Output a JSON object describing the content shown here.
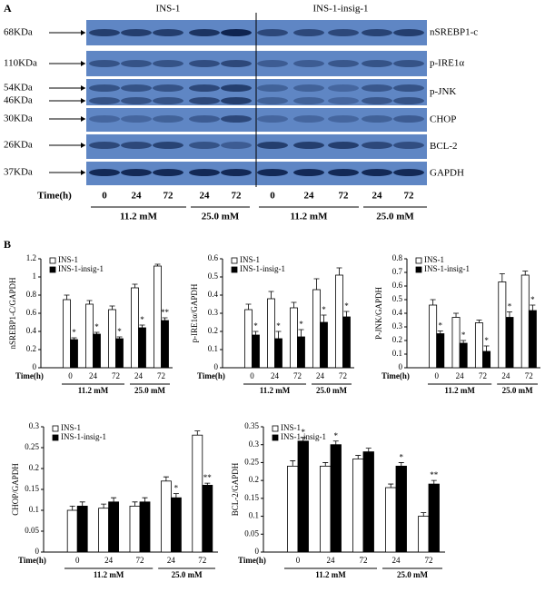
{
  "panel_a": {
    "label": "A",
    "groups": [
      "INS-1",
      "INS-1-insig-1"
    ],
    "markers": [
      "68KDa",
      "110KDa",
      "54KDa",
      "46KDa",
      "30KDa",
      "26KDa",
      "37KDa"
    ],
    "proteins": [
      "nSREBP1-c",
      "p-IRE1α",
      "p-JNK",
      "CHOP",
      "BCL-2",
      "GAPDH"
    ],
    "time_label": "Time(h)",
    "times": [
      "0",
      "24",
      "72",
      "24",
      "72",
      "0",
      "24",
      "72",
      "24",
      "72"
    ],
    "concentrations": [
      "11.2 mM",
      "25.0 mM",
      "11.2 mM",
      "25.0 mM"
    ]
  },
  "panel_b": {
    "label": "B"
  },
  "chart_data": [
    {
      "type": "bar",
      "ylabel": "nSREBP1-C/GAPDH",
      "xlabel": "Time(h)",
      "categories": [
        "0",
        "24",
        "72",
        "24",
        "72"
      ],
      "groups": [
        "11.2 mM",
        "25.0 mM"
      ],
      "ylim": [
        0,
        1.2
      ],
      "yticks": [
        0,
        0.2,
        0.4,
        0.6,
        0.8,
        1,
        1.2
      ],
      "series": [
        {
          "name": "INS-1",
          "color": "#ffffff",
          "values": [
            0.75,
            0.7,
            0.64,
            0.88,
            1.12
          ],
          "errors": [
            0.05,
            0.04,
            0.04,
            0.04,
            0.02
          ],
          "annotations": [
            null,
            null,
            null,
            null,
            null
          ]
        },
        {
          "name": "INS-1-insig-1",
          "color": "#000000",
          "values": [
            0.31,
            0.37,
            0.32,
            0.44,
            0.52
          ],
          "errors": [
            0.02,
            0.02,
            0.02,
            0.03,
            0.03
          ],
          "annotations": [
            "*",
            "*",
            "*",
            "*",
            "**"
          ]
        }
      ]
    },
    {
      "type": "bar",
      "ylabel": "p-IRE1α/GAPDH",
      "xlabel": "Time(h)",
      "categories": [
        "0",
        "24",
        "72",
        "24",
        "72"
      ],
      "groups": [
        "11.2 mM",
        "25.0 mM"
      ],
      "ylim": [
        0,
        0.6
      ],
      "yticks": [
        0,
        0.1,
        0.2,
        0.3,
        0.4,
        0.5,
        0.6
      ],
      "series": [
        {
          "name": "INS-1",
          "color": "#ffffff",
          "values": [
            0.32,
            0.38,
            0.33,
            0.43,
            0.51
          ],
          "errors": [
            0.03,
            0.04,
            0.03,
            0.06,
            0.04
          ],
          "annotations": [
            null,
            null,
            null,
            null,
            null
          ]
        },
        {
          "name": "INS-1-insig-1",
          "color": "#000000",
          "values": [
            0.18,
            0.16,
            0.17,
            0.25,
            0.28
          ],
          "errors": [
            0.02,
            0.04,
            0.04,
            0.04,
            0.03
          ],
          "annotations": [
            "*",
            "*",
            "*",
            "*",
            "*"
          ]
        }
      ]
    },
    {
      "type": "bar",
      "ylabel": "P-JNK/GAPDH",
      "xlabel": "Time(h)",
      "categories": [
        "0",
        "24",
        "72",
        "24",
        "72"
      ],
      "groups": [
        "11.2 mM",
        "25.0 mM"
      ],
      "ylim": [
        0,
        0.8
      ],
      "yticks": [
        0,
        0.1,
        0.2,
        0.3,
        0.4,
        0.5,
        0.6,
        0.7,
        0.8
      ],
      "series": [
        {
          "name": "INS-1",
          "color": "#ffffff",
          "values": [
            0.46,
            0.37,
            0.33,
            0.63,
            0.68
          ],
          "errors": [
            0.04,
            0.03,
            0.02,
            0.06,
            0.03
          ],
          "annotations": [
            null,
            null,
            null,
            null,
            null
          ]
        },
        {
          "name": "INS-1-insig-1",
          "color": "#000000",
          "values": [
            0.25,
            0.18,
            0.12,
            0.37,
            0.42
          ],
          "errors": [
            0.02,
            0.02,
            0.04,
            0.04,
            0.04
          ],
          "annotations": [
            "*",
            "*",
            "*",
            "*",
            "*"
          ]
        }
      ]
    },
    {
      "type": "bar",
      "ylabel": "CHOP/GAPDH",
      "xlabel": "Time(h)",
      "categories": [
        "0",
        "24",
        "72",
        "24",
        "72"
      ],
      "groups": [
        "11.2 mM",
        "25.0 mM"
      ],
      "ylim": [
        0,
        0.3
      ],
      "yticks": [
        0,
        0.05,
        0.1,
        0.15,
        0.2,
        0.25,
        0.3
      ],
      "series": [
        {
          "name": "INS-1",
          "color": "#ffffff",
          "values": [
            0.1,
            0.105,
            0.11,
            0.17,
            0.28
          ],
          "errors": [
            0.01,
            0.01,
            0.01,
            0.01,
            0.01
          ],
          "annotations": [
            null,
            null,
            null,
            null,
            null
          ]
        },
        {
          "name": "INS-1-insig-1",
          "color": "#000000",
          "values": [
            0.11,
            0.12,
            0.12,
            0.13,
            0.16
          ],
          "errors": [
            0.01,
            0.01,
            0.01,
            0.01,
            0.005
          ],
          "annotations": [
            null,
            null,
            null,
            "*",
            "**"
          ]
        }
      ]
    },
    {
      "type": "bar",
      "ylabel": "BCL-2/GAPDH",
      "xlabel": "Time(h)",
      "categories": [
        "0",
        "24",
        "72",
        "24",
        "72"
      ],
      "groups": [
        "11.2 mM",
        "25.0 mM"
      ],
      "ylim": [
        0,
        0.35
      ],
      "yticks": [
        0,
        0.05,
        0.1,
        0.15,
        0.2,
        0.25,
        0.3,
        0.35
      ],
      "series": [
        {
          "name": "INS-1",
          "color": "#ffffff",
          "values": [
            0.24,
            0.24,
            0.26,
            0.18,
            0.1
          ],
          "errors": [
            0.015,
            0.01,
            0.01,
            0.01,
            0.01
          ],
          "annotations": [
            null,
            null,
            null,
            null,
            null
          ]
        },
        {
          "name": "INS-1-insig-1",
          "color": "#000000",
          "values": [
            0.31,
            0.3,
            0.28,
            0.24,
            0.19
          ],
          "errors": [
            0.01,
            0.01,
            0.01,
            0.01,
            0.01
          ],
          "annotations": [
            "*",
            "*",
            null,
            "*",
            "**"
          ]
        }
      ]
    }
  ]
}
